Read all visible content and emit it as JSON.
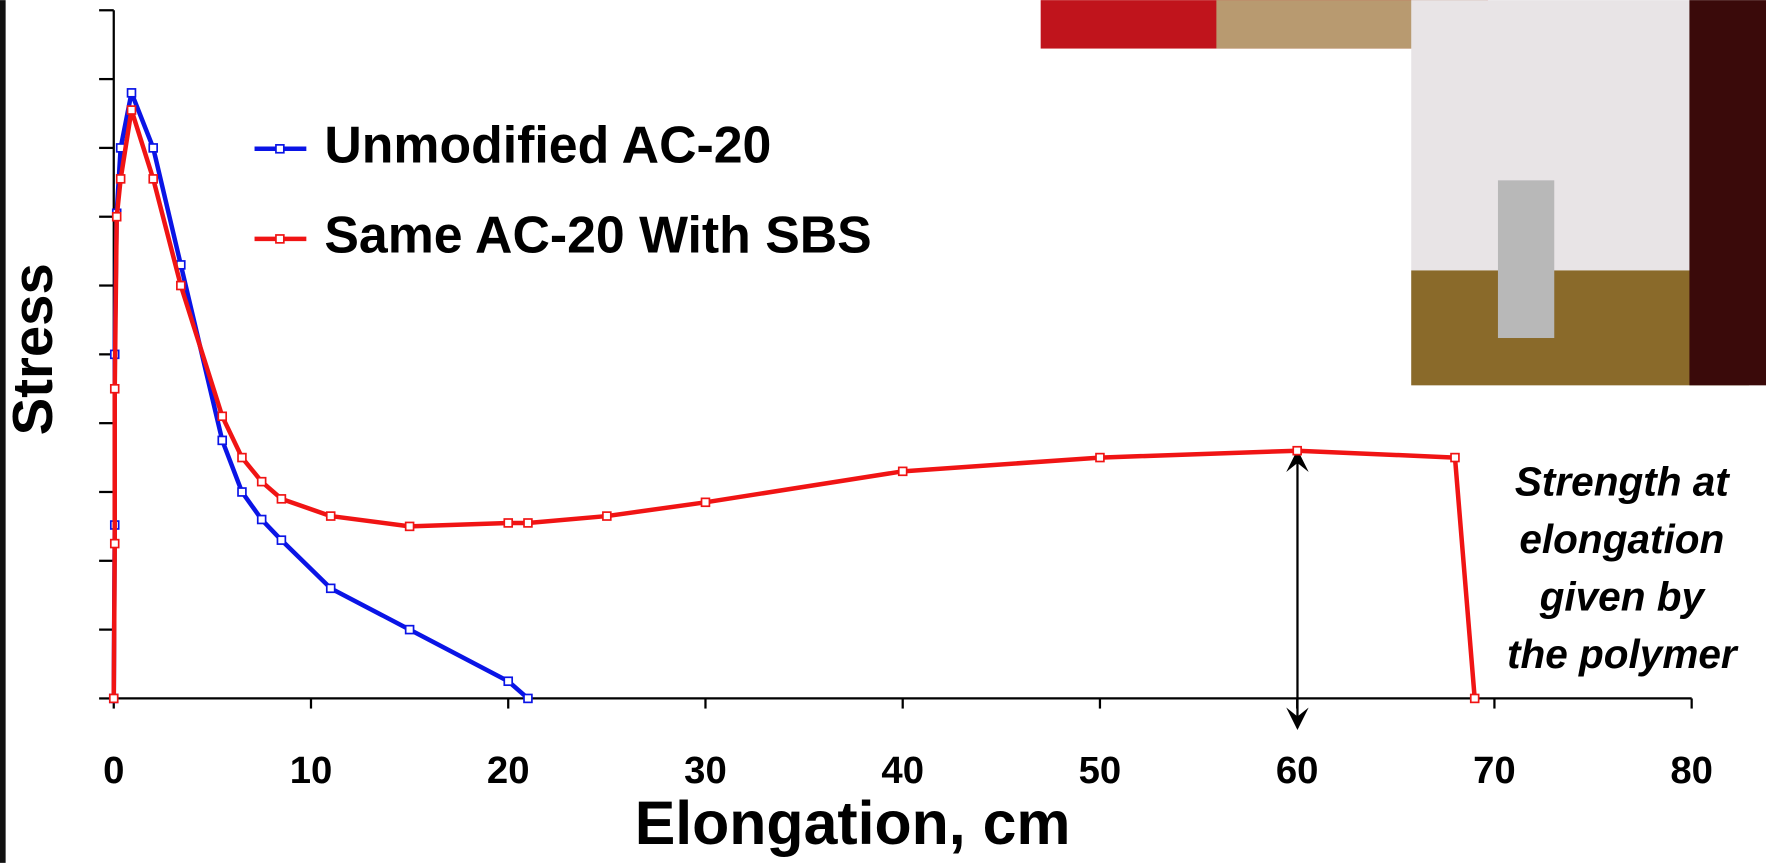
{
  "chart_data": {
    "type": "line",
    "x_label": "Elongation, cm",
    "y_label": "Stress",
    "xlim": [
      0,
      80
    ],
    "xticks": [
      0,
      10,
      20,
      30,
      40,
      50,
      60,
      70,
      80
    ],
    "ylim": [
      0,
      10
    ],
    "yticks": [
      0,
      1,
      2,
      3,
      4,
      5,
      6,
      7,
      8,
      9,
      10
    ],
    "series": [
      {
        "name": "Unmodified AC-20",
        "color": "#0a14e6",
        "x": [
          0,
          0.05,
          0.05,
          0.15,
          0.35,
          0.9,
          2.0,
          3.4,
          5.5,
          6.5,
          7.5,
          8.5,
          11,
          15,
          20,
          21
        ],
        "values": [
          0,
          2.52,
          5.0,
          7.05,
          8.0,
          8.8,
          8.0,
          6.3,
          3.75,
          3.0,
          2.6,
          2.3,
          1.6,
          1.0,
          0.25,
          0
        ]
      },
      {
        "name": "Same AC-20 With SBS",
        "color": "#f01414",
        "x": [
          0,
          0.05,
          0.05,
          0.15,
          0.35,
          0.9,
          2.0,
          3.4,
          5.5,
          6.5,
          7.5,
          8.5,
          11,
          15,
          20,
          21,
          25,
          30,
          40,
          50,
          60,
          68,
          69
        ],
        "values": [
          0,
          2.25,
          4.5,
          7.0,
          7.55,
          8.55,
          7.55,
          6.0,
          4.1,
          3.5,
          3.15,
          2.9,
          2.65,
          2.5,
          2.55,
          2.55,
          2.65,
          2.85,
          3.3,
          3.5,
          3.6,
          3.5,
          0
        ]
      }
    ],
    "annotation": [
      "Strength at",
      "elongation",
      "given by",
      "the polymer"
    ]
  }
}
